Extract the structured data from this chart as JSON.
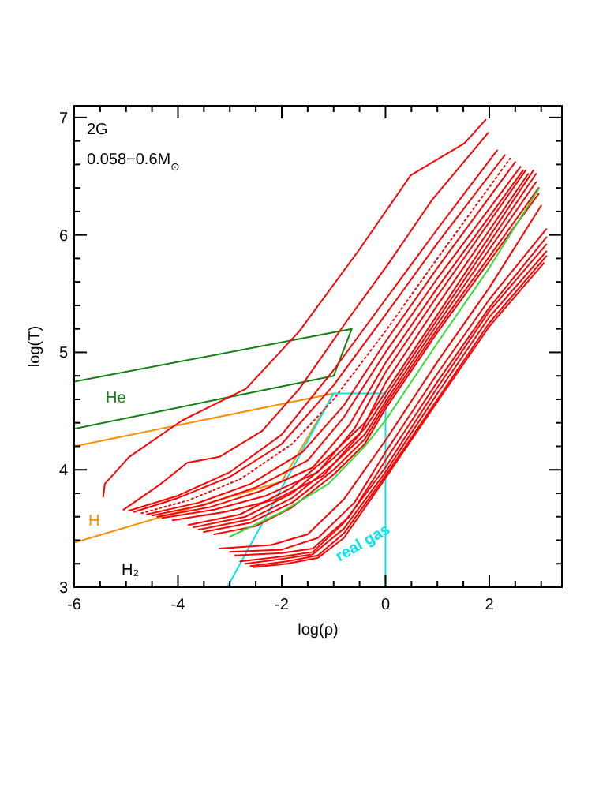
{
  "chart_data": {
    "type": "line",
    "title": "2G",
    "subtitle": "0.058−0.6M$_{⊙}$",
    "xlabel": "log(ρ)",
    "ylabel": "log(T)",
    "xlim": [
      -6,
      3.4
    ],
    "ylim": [
      3,
      7.1
    ],
    "xticks": [
      -6,
      {
        "value": -5.5,
        "label": null
      },
      {
        "value": -5,
        "label": null
      },
      {
        "value": -4.5,
        "label": null
      },
      -4,
      {
        "value": -3.5,
        "label": null
      },
      {
        "value": -3,
        "label": null
      },
      {
        "value": -2.5,
        "label": null
      },
      -2,
      {
        "value": -1.5,
        "label": null
      },
      {
        "value": -1,
        "label": null
      },
      {
        "value": -0.5,
        "label": null
      },
      0,
      {
        "value": 0.5,
        "label": null
      },
      {
        "value": 1,
        "label": null
      },
      {
        "value": 1.5,
        "label": null
      },
      2,
      {
        "value": 2.5,
        "label": null
      },
      {
        "value": 3,
        "label": null
      }
    ],
    "yticks": [
      3,
      {
        "value": 3.2,
        "label": null
      },
      {
        "value": 3.4,
        "label": null
      },
      {
        "value": 3.6,
        "label": null
      },
      {
        "value": 3.8,
        "label": null
      },
      4,
      {
        "value": 4.2,
        "label": null
      },
      {
        "value": 4.4,
        "label": null
      },
      {
        "value": 4.6,
        "label": null
      },
      {
        "value": 4.8,
        "label": null
      },
      5,
      {
        "value": 5.2,
        "label": null
      },
      {
        "value": 5.4,
        "label": null
      },
      {
        "value": 5.6,
        "label": null
      },
      {
        "value": 5.8,
        "label": null
      },
      6,
      {
        "value": 6.2,
        "label": null
      },
      {
        "value": 6.4,
        "label": null
      },
      {
        "value": 6.6,
        "label": null
      },
      {
        "value": 6.8,
        "label": null
      },
      7
    ],
    "grid": false,
    "marker": "none",
    "line_style": "solid",
    "annotations": [
      "He",
      "H",
      "H₂",
      "real gas"
    ],
    "series": [
      {
        "color": "#138013",
        "x": [
          -6,
          -0.65,
          -1,
          -6
        ],
        "values": [
          4.75,
          5.2,
          4.8,
          4.35
        ]
      },
      {
        "color": "#ff8c00",
        "x": [
          -6,
          -1,
          -2,
          -6
        ],
        "values": [
          4.2,
          4.65,
          3.9,
          3.38
        ]
      },
      {
        "color": "#00e5ee",
        "x": [
          -3.05,
          -1,
          0,
          0
        ],
        "values": [
          3,
          4.65,
          4.65,
          3
        ]
      },
      {
        "color": "#ff0000",
        "x": [
          -5.44,
          -5.41,
          -4.94,
          -3.92,
          -2.69,
          -1.66,
          -0.53,
          0.49,
          1.52,
          1.93
        ],
        "values": [
          3.77,
          3.88,
          4.11,
          4.42,
          4.69,
          5.18,
          5.86,
          6.51,
          6.78,
          6.98
        ]
      },
      {
        "color": "#ff0000",
        "x": [
          -5.05,
          -4.33,
          -3.82,
          -3.2,
          -2.38,
          -1.66,
          -0.74,
          0.08,
          0.9,
          1.98
        ],
        "values": [
          3.66,
          3.88,
          4.06,
          4.11,
          4.33,
          4.69,
          5.27,
          5.77,
          6.3,
          6.87
        ]
      },
      {
        "color": "#ff0000",
        "x": [
          -4.95,
          -4,
          -3,
          -2,
          -1,
          0,
          1,
          2.15
        ],
        "values": [
          3.65,
          3.78,
          3.98,
          4.3,
          4.85,
          5.45,
          6.05,
          6.72
        ]
      },
      {
        "color": "#ff0000",
        "x": [
          -4.85,
          -4,
          -3,
          -2,
          -1,
          0,
          1,
          2.3
        ],
        "values": [
          3.64,
          3.76,
          3.94,
          4.22,
          4.72,
          5.32,
          5.93,
          6.68
        ]
      },
      {
        "color": "#ff0000",
        "line_style": "dotted",
        "x": [
          -4.7,
          -3.8,
          -2.8,
          -1.8,
          -1,
          0,
          1,
          2.4
        ],
        "values": [
          3.63,
          3.74,
          3.92,
          4.22,
          4.6,
          5.18,
          5.8,
          6.65
        ]
      },
      {
        "color": "#ff0000",
        "x": [
          -4.6,
          -3.6,
          -2.6,
          -1.6,
          -0.8,
          0,
          1,
          2.5
        ],
        "values": [
          3.62,
          3.72,
          3.88,
          4.15,
          4.55,
          5.09,
          5.72,
          6.62
        ]
      },
      {
        "color": "#ff0000",
        "x": [
          -4.5,
          -3.5,
          -2.5,
          -1.5,
          -0.8,
          0,
          1,
          2.6
        ],
        "values": [
          3.61,
          3.7,
          3.85,
          4.08,
          4.45,
          5,
          5.63,
          6.58
        ]
      },
      {
        "color": "#ff0000",
        "x": [
          -4.4,
          -3.4,
          -2.4,
          -1.4,
          -0.7,
          0,
          1,
          2.65
        ],
        "values": [
          3.6,
          3.68,
          3.82,
          4.02,
          4.38,
          4.91,
          5.55,
          6.55
        ]
      },
      {
        "color": "#ff0000",
        "x": [
          -4.3,
          -3.3,
          -2.3,
          -1.3,
          -0.6,
          0,
          1,
          2.7
        ],
        "values": [
          3.59,
          3.66,
          3.78,
          3.98,
          4.35,
          4.83,
          5.48,
          6.55
        ]
      },
      {
        "color": "#ff0000",
        "x": [
          -4.1,
          -3.1,
          -2.1,
          -1.2,
          -0.5,
          0,
          1,
          2.75
        ],
        "values": [
          3.57,
          3.64,
          3.75,
          3.95,
          4.3,
          4.74,
          5.4,
          6.52
        ]
      },
      {
        "color": "#ff0000",
        "x": [
          -3.8,
          -2.8,
          -1.8,
          -1,
          -0.4,
          0,
          1,
          2.85
        ],
        "values": [
          3.53,
          3.62,
          3.85,
          4.15,
          4.4,
          4.66,
          5.32,
          6.55
        ]
      },
      {
        "color": "#ff0000",
        "x": [
          -3.7,
          -2.7,
          -1.8,
          -1,
          -0.4,
          0,
          1,
          2.9
        ],
        "values": [
          3.51,
          3.6,
          3.8,
          4.1,
          4.35,
          4.62,
          5.28,
          6.52
        ]
      },
      {
        "color": "#ff0000",
        "x": [
          -3.6,
          -2.6,
          -1.8,
          -1,
          -0.4,
          0,
          1,
          2.9
        ],
        "values": [
          3.49,
          3.58,
          3.76,
          4.05,
          4.3,
          4.58,
          5.24,
          6.45
        ]
      },
      {
        "color": "#ff0000",
        "x": [
          -3.5,
          -2.6,
          -1.8,
          -1,
          -0.4,
          0,
          1,
          2.95
        ],
        "values": [
          3.47,
          3.55,
          3.72,
          4,
          4.26,
          4.55,
          5.2,
          6.4
        ]
      },
      {
        "color": "#ff0000",
        "x": [
          -3.3,
          -2.5,
          -1.8,
          -1,
          -0.4,
          0,
          1,
          2.95
        ],
        "values": [
          3.45,
          3.52,
          3.68,
          3.96,
          4.22,
          4.52,
          5.17,
          6.35
        ]
      },
      {
        "color": "#33dd33",
        "x": [
          -3,
          -2,
          -1.1,
          -0.4,
          0,
          1,
          2,
          2.95
        ],
        "values": [
          3.43,
          3.64,
          3.88,
          4.2,
          4.42,
          5.08,
          5.72,
          6.39
        ]
      },
      {
        "color": "#ff0000",
        "x": [
          -3.2,
          -2.2,
          -1.5,
          -0.8,
          0,
          1,
          2,
          3
        ],
        "values": [
          3.33,
          3.36,
          3.45,
          3.75,
          4.25,
          4.92,
          5.55,
          6.25
        ]
      },
      {
        "color": "#ff0000",
        "x": [
          -3,
          -2,
          -1.3,
          -0.6,
          0,
          1,
          2,
          3.1
        ],
        "values": [
          3.3,
          3.32,
          3.42,
          3.72,
          4.15,
          4.82,
          5.45,
          6.05
        ]
      },
      {
        "color": "#ff0000",
        "x": [
          -2.9,
          -2,
          -1.4,
          -0.7,
          0,
          1,
          2,
          3.1
        ],
        "values": [
          3.27,
          3.29,
          3.33,
          3.6,
          4.08,
          4.75,
          5.38,
          5.98
        ]
      },
      {
        "color": "#ff0000",
        "x": [
          -2.8,
          -2,
          -1.4,
          -0.8,
          0,
          1,
          2,
          3.1
        ],
        "values": [
          3.22,
          3.26,
          3.3,
          3.55,
          4.02,
          4.7,
          5.35,
          5.92
        ]
      },
      {
        "color": "#ff0000",
        "x": [
          -2.7,
          -2,
          -1.4,
          -0.8,
          0,
          1,
          2,
          3.1
        ],
        "values": [
          3.2,
          3.24,
          3.28,
          3.5,
          3.98,
          4.65,
          5.3,
          5.86
        ]
      },
      {
        "color": "#ff0000",
        "x": [
          -2.6,
          -1.9,
          -1.3,
          -0.8,
          0,
          1,
          2,
          3.1
        ],
        "values": [
          3.18,
          3.22,
          3.27,
          3.46,
          3.95,
          4.6,
          5.25,
          5.82
        ]
      },
      {
        "color": "#ff0000",
        "x": [
          -2.55,
          -1.9,
          -1.3,
          -0.8,
          0,
          1,
          2,
          3.05
        ],
        "values": [
          3.17,
          3.2,
          3.25,
          3.42,
          3.93,
          4.58,
          5.22,
          5.76
        ]
      }
    ]
  }
}
